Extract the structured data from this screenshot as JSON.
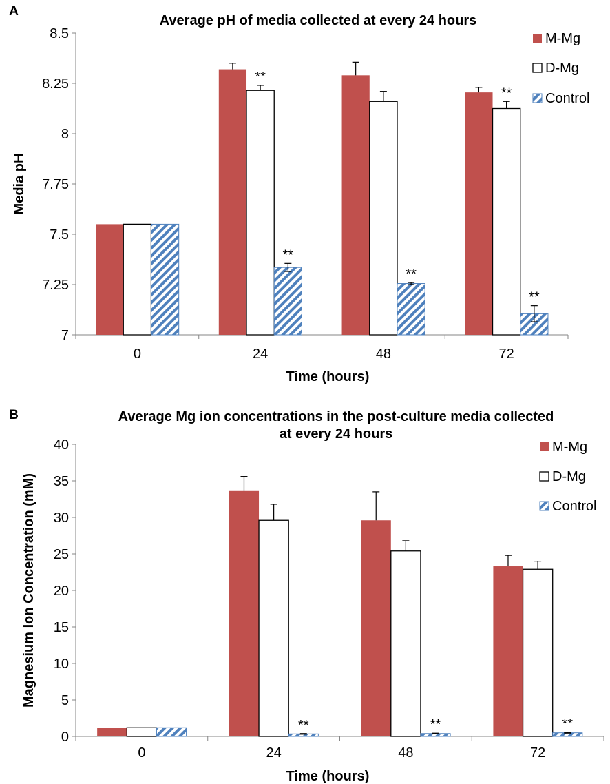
{
  "colors": {
    "m_mg": "#c0504d",
    "d_mg": "#ffffff",
    "control": "#4f81bd",
    "axis": "#868686"
  },
  "chart_data": [
    {
      "panel": "A",
      "type": "bar",
      "title": "Average pH of media collected at every 24 hours",
      "title_lines": [
        "Average pH of media collected at every 24 hours"
      ],
      "xlabel": "Time (hours)",
      "ylabel": "Media pH",
      "ylim": [
        7,
        8.5
      ],
      "yticks": [
        7,
        7.25,
        7.5,
        7.75,
        8,
        8.25,
        8.5
      ],
      "ytick_labels": [
        "7",
        "7.25",
        "7.5",
        "7.75",
        "8",
        "8.25",
        "8.5"
      ],
      "categories": [
        "0",
        "24",
        "48",
        "72"
      ],
      "legend_position": "top-right",
      "grid": false,
      "series": [
        {
          "name": "M-Mg",
          "fill": "#c0504d",
          "pattern": "solid",
          "values": [
            7.55,
            8.32,
            8.29,
            8.205
          ],
          "errors": [
            null,
            0.03,
            0.065,
            0.025
          ],
          "sig": [
            "",
            "",
            "",
            ""
          ]
        },
        {
          "name": "D-Mg",
          "fill": "#ffffff",
          "pattern": "outline",
          "values": [
            7.55,
            8.215,
            8.16,
            8.125
          ],
          "errors": [
            null,
            0.025,
            0.05,
            0.035
          ],
          "sig": [
            "",
            "**",
            "",
            "**"
          ]
        },
        {
          "name": "Control",
          "fill": "#4f81bd",
          "pattern": "hatch",
          "values": [
            7.55,
            7.335,
            7.255,
            7.105
          ],
          "errors": [
            null,
            0.02,
            0.005,
            0.04
          ],
          "sig": [
            "",
            "**",
            "**",
            "**"
          ]
        }
      ]
    },
    {
      "panel": "B",
      "type": "bar",
      "title": "Average Mg ion concentrations in the post-culture media collected at every 24 hours",
      "title_lines": [
        "Average Mg ion concentrations in the post-culture media collected",
        "at every 24 hours"
      ],
      "xlabel": "Time (hours)",
      "ylabel": "Magnesium Ion Concentration (mM)",
      "ylim": [
        0,
        40
      ],
      "yticks": [
        0,
        5,
        10,
        15,
        20,
        25,
        30,
        35,
        40
      ],
      "ytick_labels": [
        "0",
        "5",
        "10",
        "15",
        "20",
        "25",
        "30",
        "35",
        "40"
      ],
      "categories": [
        "0",
        "24",
        "48",
        "72"
      ],
      "legend_position": "top-right",
      "grid": false,
      "series": [
        {
          "name": "M-Mg",
          "fill": "#c0504d",
          "pattern": "solid",
          "values": [
            1.2,
            33.7,
            29.6,
            23.3
          ],
          "errors": [
            null,
            1.9,
            3.9,
            1.5
          ],
          "sig": [
            "",
            "",
            "",
            ""
          ]
        },
        {
          "name": "D-Mg",
          "fill": "#ffffff",
          "pattern": "outline",
          "values": [
            1.2,
            29.6,
            25.4,
            22.9
          ],
          "errors": [
            null,
            2.2,
            1.4,
            1.1
          ],
          "sig": [
            "",
            "",
            "",
            ""
          ]
        },
        {
          "name": "Control",
          "fill": "#4f81bd",
          "pattern": "hatch",
          "values": [
            1.2,
            0.35,
            0.4,
            0.5
          ],
          "errors": [
            null,
            0.05,
            0.05,
            0.05
          ],
          "sig": [
            "",
            "**",
            "**",
            "**"
          ]
        }
      ]
    }
  ]
}
